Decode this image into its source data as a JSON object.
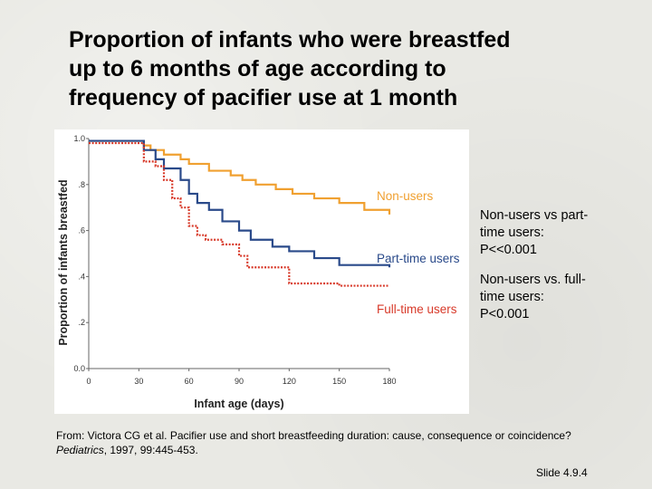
{
  "slide": {
    "title_lines": [
      "Proportion of infants who were breastfed",
      "up to 6 months of age according to",
      "frequency of pacifier use at 1 month"
    ],
    "stats": [
      {
        "lines": [
          "Non-users vs part-",
          "time users:",
          "P<<0.001"
        ]
      },
      {
        "lines": [
          "Non-users vs. full-",
          "time users:",
          "P<0.001"
        ]
      }
    ],
    "source": {
      "prefix": "From: Victora CG et al. Pacifier use and short breastfeeding duration: cause, consequence or coincidence? ",
      "journal": "Pediatrics",
      "suffix": ", 1997, 99:445-453."
    },
    "slide_number": "Slide 4.9.4"
  },
  "chart_data": {
    "type": "line",
    "step": true,
    "xlabel": "Infant age (days)",
    "ylabel": "Proportion of infants breastfed",
    "xlim": [
      0,
      180
    ],
    "ylim": [
      0,
      1.0
    ],
    "x_ticks": [
      "0",
      "30",
      "60",
      "90",
      "120",
      "150",
      "180"
    ],
    "x_tick_values": [
      0,
      30,
      60,
      90,
      120,
      150,
      180
    ],
    "y_ticks": [
      "0.0",
      ".2",
      ".4",
      ".6",
      ".8",
      "1.0"
    ],
    "y_tick_values": [
      0,
      0.2,
      0.4,
      0.6,
      0.8,
      1.0
    ],
    "grid": false,
    "series": [
      {
        "name": "Non-users",
        "color": "#f0a030",
        "x": [
          0,
          30,
          33,
          37,
          45,
          55,
          60,
          72,
          85,
          92,
          100,
          112,
          122,
          135,
          150,
          165,
          180
        ],
        "y": [
          0.99,
          0.99,
          0.97,
          0.95,
          0.93,
          0.91,
          0.89,
          0.86,
          0.84,
          0.82,
          0.8,
          0.78,
          0.76,
          0.74,
          0.72,
          0.69,
          0.67
        ]
      },
      {
        "name": "Part-time users",
        "color": "#2a4a8a",
        "x": [
          0,
          30,
          33,
          40,
          45,
          55,
          60,
          65,
          72,
          80,
          90,
          97,
          110,
          120,
          135,
          150,
          180
        ],
        "y": [
          0.99,
          0.99,
          0.95,
          0.91,
          0.87,
          0.82,
          0.76,
          0.72,
          0.69,
          0.64,
          0.6,
          0.56,
          0.53,
          0.51,
          0.48,
          0.45,
          0.44
        ]
      },
      {
        "name": "Full-time users",
        "color": "#d83a2a",
        "x": [
          0,
          30,
          33,
          40,
          45,
          50,
          55,
          60,
          65,
          70,
          80,
          90,
          95,
          120,
          150,
          180
        ],
        "y": [
          0.98,
          0.98,
          0.9,
          0.88,
          0.82,
          0.74,
          0.7,
          0.62,
          0.58,
          0.56,
          0.54,
          0.49,
          0.44,
          0.37,
          0.36,
          0.36
        ]
      }
    ]
  }
}
